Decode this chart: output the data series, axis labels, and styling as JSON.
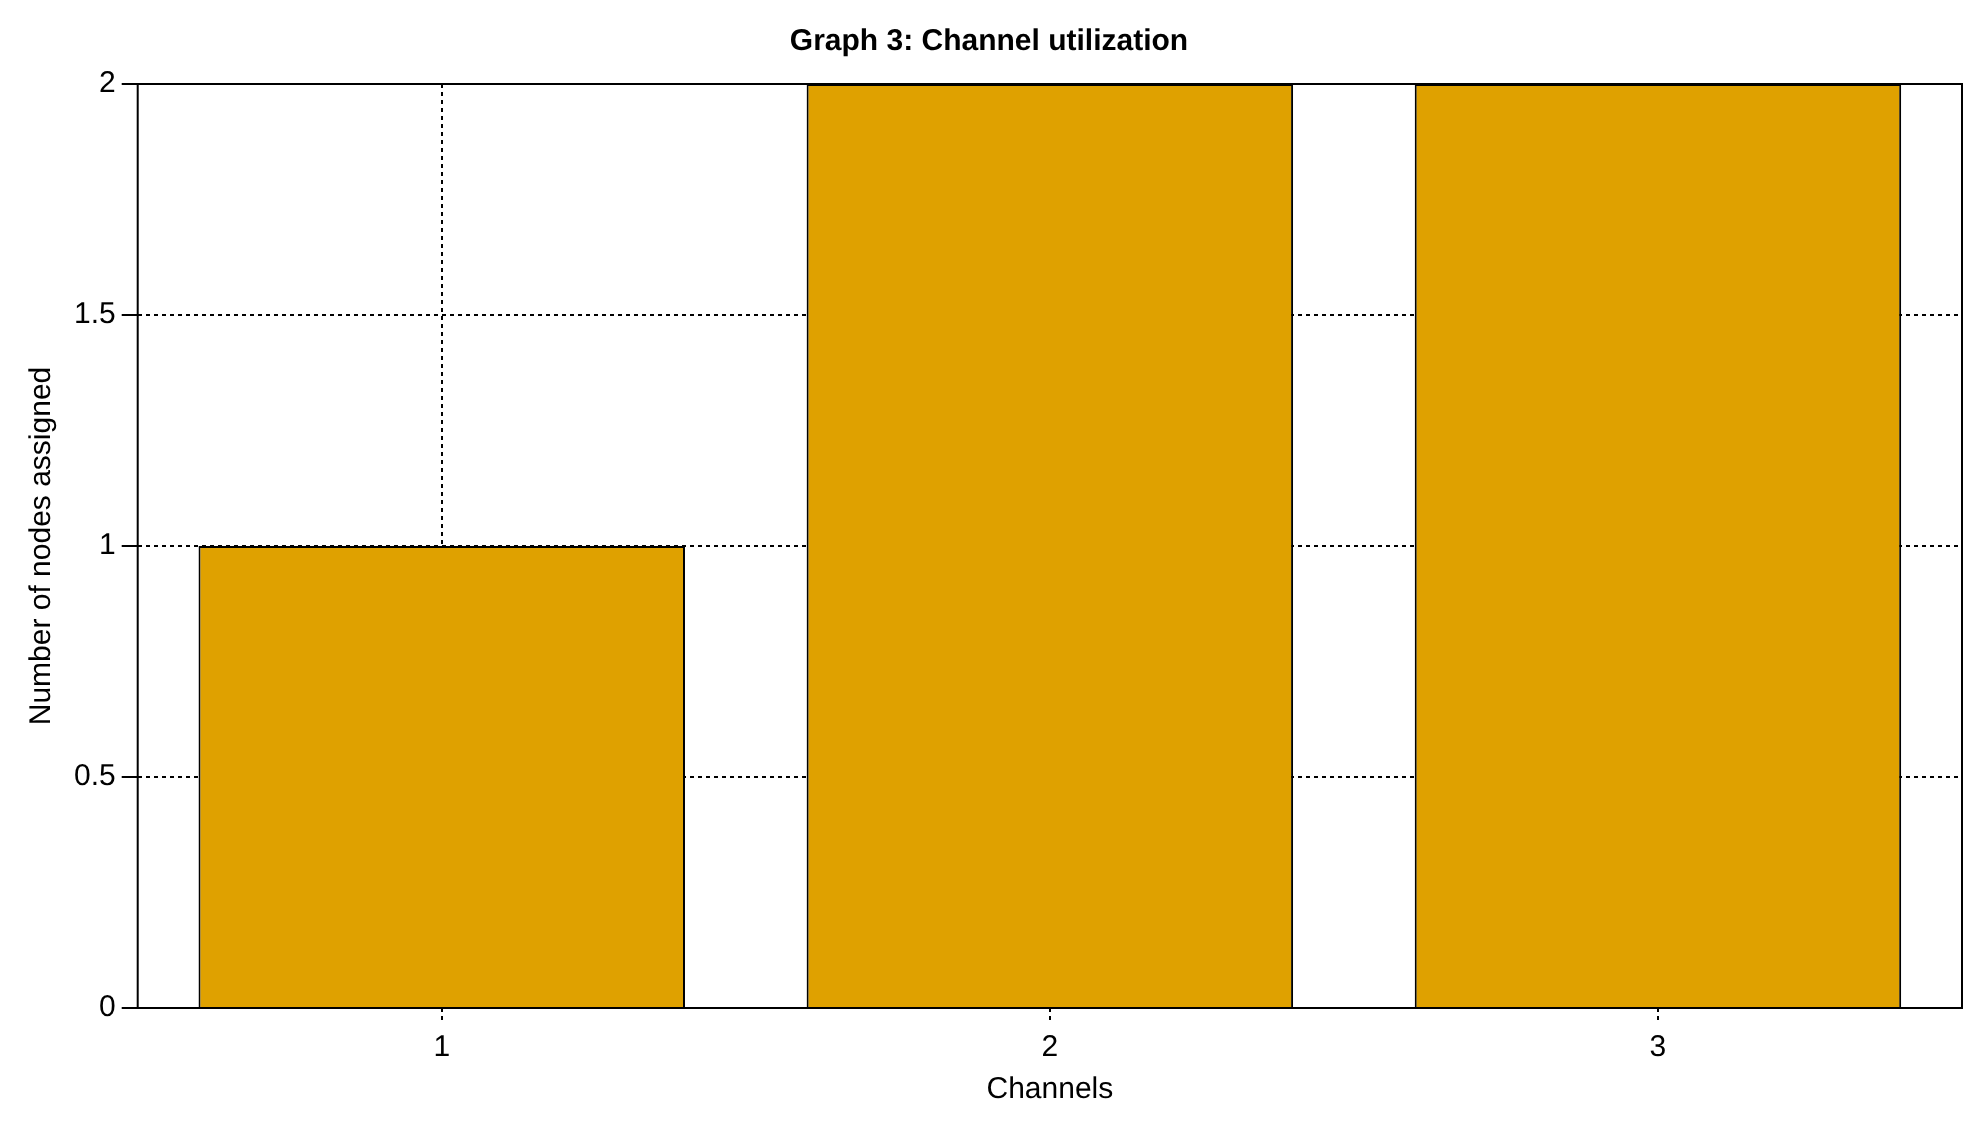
{
  "chart_data": {
    "type": "bar",
    "title": "Graph 3: Channel utilization",
    "xlabel": "Channels",
    "ylabel": "Number of nodes assigned",
    "categories": [
      "1",
      "2",
      "3"
    ],
    "values": [
      1,
      2,
      2
    ],
    "color": "#dfa100",
    "ylim": [
      0,
      2
    ],
    "yticks": [
      0,
      0.5,
      1,
      1.5,
      2
    ],
    "grid": true,
    "legend": false
  }
}
